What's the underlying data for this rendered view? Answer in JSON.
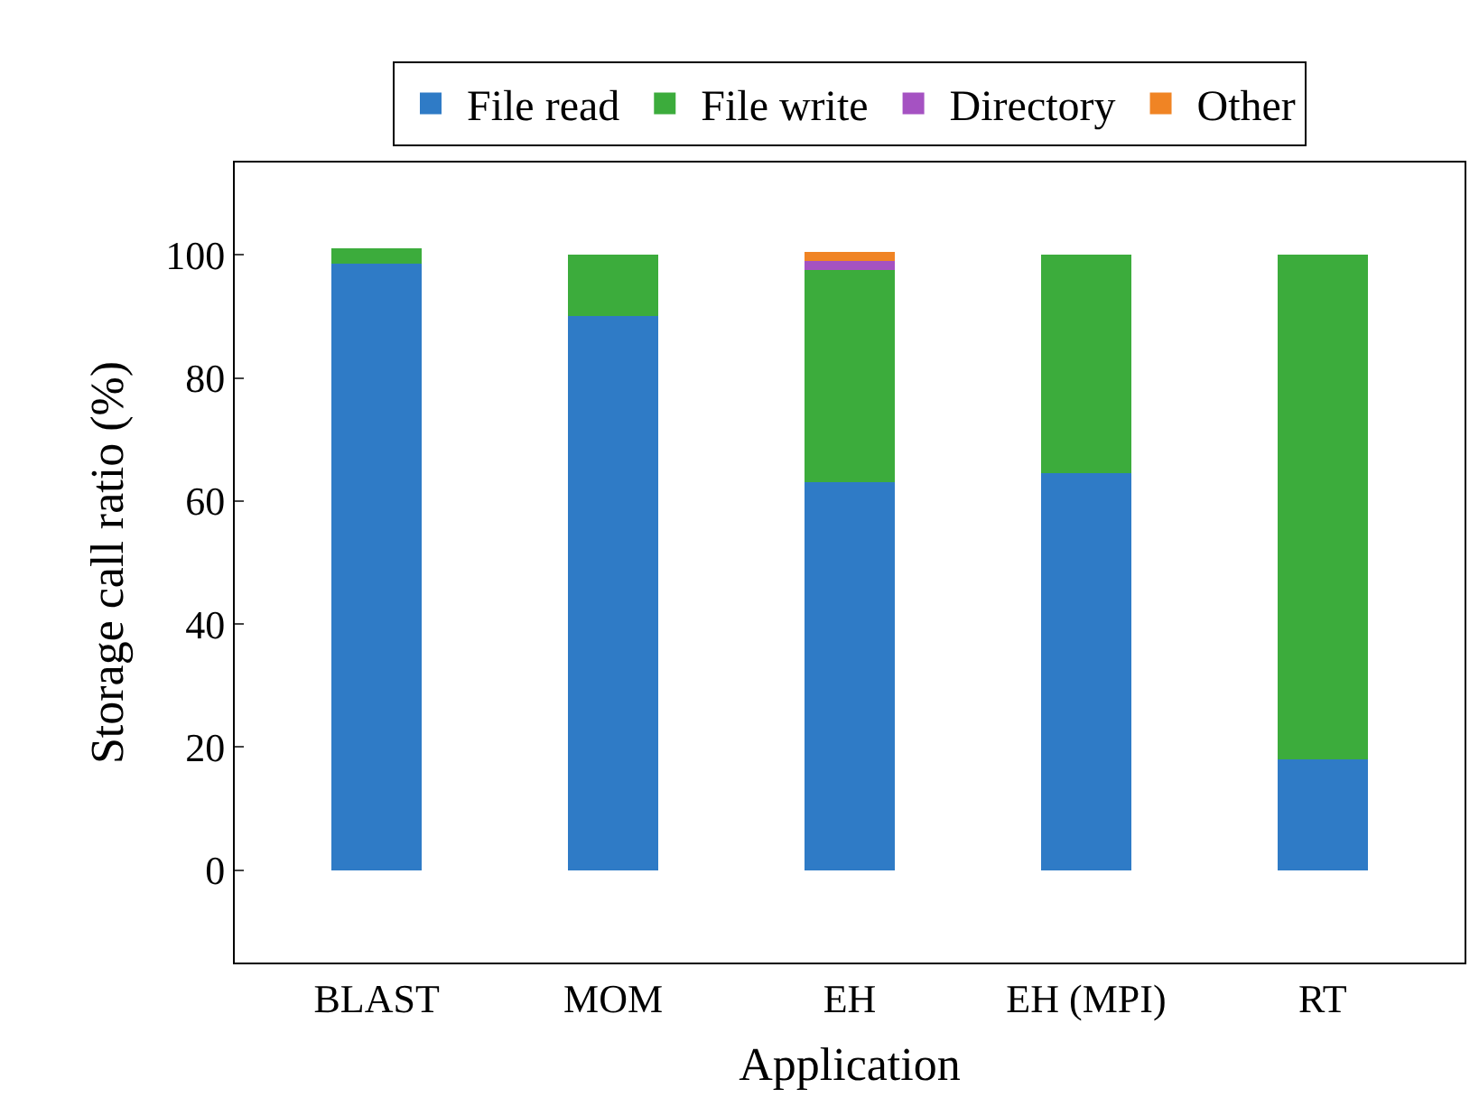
{
  "chart_data": {
    "type": "bar",
    "stacked": true,
    "xlabel": "Application",
    "ylabel": "Storage call ratio (%)",
    "categories": [
      "BLAST",
      "MOM",
      "EH",
      "EH (MPI)",
      "RT"
    ],
    "series": [
      {
        "name": "File read",
        "color": "#2f7bc6",
        "values": [
          98.5,
          90,
          63,
          64.5,
          18
        ]
      },
      {
        "name": "File write",
        "color": "#3cac3c",
        "values": [
          2.5,
          10,
          34.5,
          35.5,
          82
        ]
      },
      {
        "name": "Directory",
        "color": "#a552c2",
        "values": [
          0,
          0,
          1.5,
          0,
          0
        ]
      },
      {
        "name": "Other",
        "color": "#f08424",
        "values": [
          0,
          0,
          1.5,
          0,
          0
        ]
      }
    ],
    "ylim": [
      -15,
      115
    ],
    "yticks": [
      0,
      20,
      40,
      60,
      80,
      100
    ],
    "legend": "top"
  }
}
